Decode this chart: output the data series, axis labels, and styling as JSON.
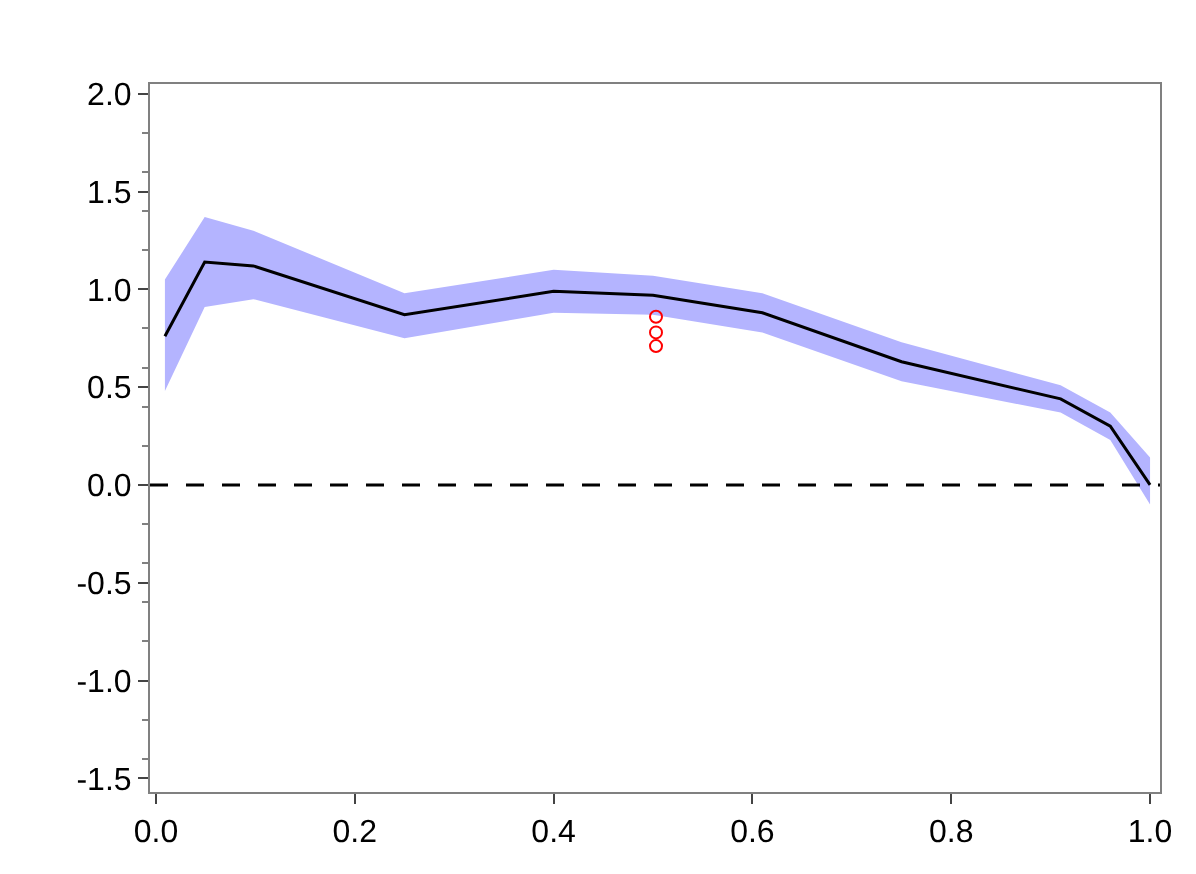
{
  "chart_data": {
    "type": "line",
    "xlim": [
      -0.006,
      1.01
    ],
    "ylim": [
      -1.57,
      2.05
    ],
    "xticks": [
      {
        "value": 0,
        "label": "0.0"
      },
      0.2,
      0.4,
      0.6,
      0.8,
      {
        "value": 1,
        "label": "1.0"
      }
    ],
    "yticks": [
      -1.5,
      {
        "value": -1,
        "label": "-1.0"
      },
      -0.5,
      {
        "value": 0,
        "label": "0.0"
      },
      0.5,
      {
        "value": 1,
        "label": "1.0"
      },
      1.5,
      {
        "value": 2,
        "label": "2.0"
      }
    ],
    "series": [
      {
        "color": "#000000",
        "line_style": "solid",
        "marker": "none",
        "x": [
          0.009,
          0.049,
          0.098,
          0.25,
          0.4,
          0.5,
          0.61,
          0.75,
          0.91,
          0.96,
          1.0
        ],
        "values": [
          0.76,
          1.14,
          1.12,
          0.87,
          0.99,
          0.97,
          0.88,
          0.63,
          0.44,
          0.3,
          0.0
        ],
        "lower": [
          0.48,
          0.91,
          0.95,
          0.75,
          0.88,
          0.87,
          0.78,
          0.53,
          0.37,
          0.23,
          -0.1
        ],
        "upper": [
          1.05,
          1.37,
          1.3,
          0.98,
          1.1,
          1.07,
          0.98,
          0.73,
          0.51,
          0.37,
          0.14
        ]
      },
      {
        "type": "scatter",
        "color": "#ff0000",
        "marker": "circle",
        "x": [
          0.503,
          0.503,
          0.503
        ],
        "values": [
          0.86,
          0.78,
          0.71
        ]
      }
    ],
    "ref_lines": [
      {
        "axis": "y",
        "value": 0,
        "color": "#000000",
        "line_style": "dashed"
      }
    ]
  }
}
